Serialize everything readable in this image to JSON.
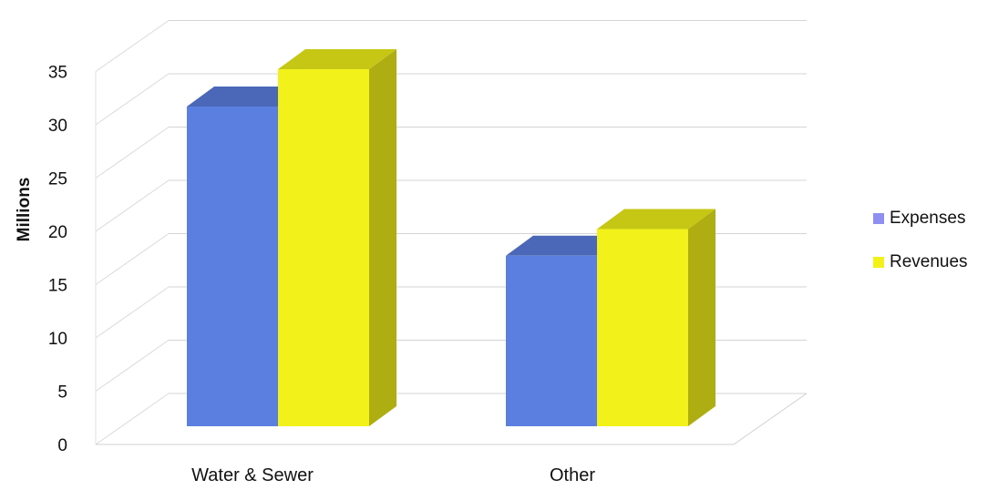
{
  "chart_data": {
    "type": "bar",
    "style": "3d-clustered-column",
    "title": "",
    "xlabel": "",
    "ylabel": "Millions",
    "categories": [
      "Water & Sewer",
      "Other"
    ],
    "series": [
      {
        "name": "Expenses",
        "values": [
          30.0,
          16.0
        ],
        "color": "#5B7FE0"
      },
      {
        "name": "Revenues",
        "values": [
          33.5,
          18.5
        ],
        "color": "#F2F21A"
      }
    ],
    "ylim": [
      0,
      35
    ],
    "yticks": [
      "0",
      "5",
      "10",
      "15",
      "20",
      "25",
      "30",
      "35"
    ],
    "grid": true,
    "legend_position": "right"
  }
}
